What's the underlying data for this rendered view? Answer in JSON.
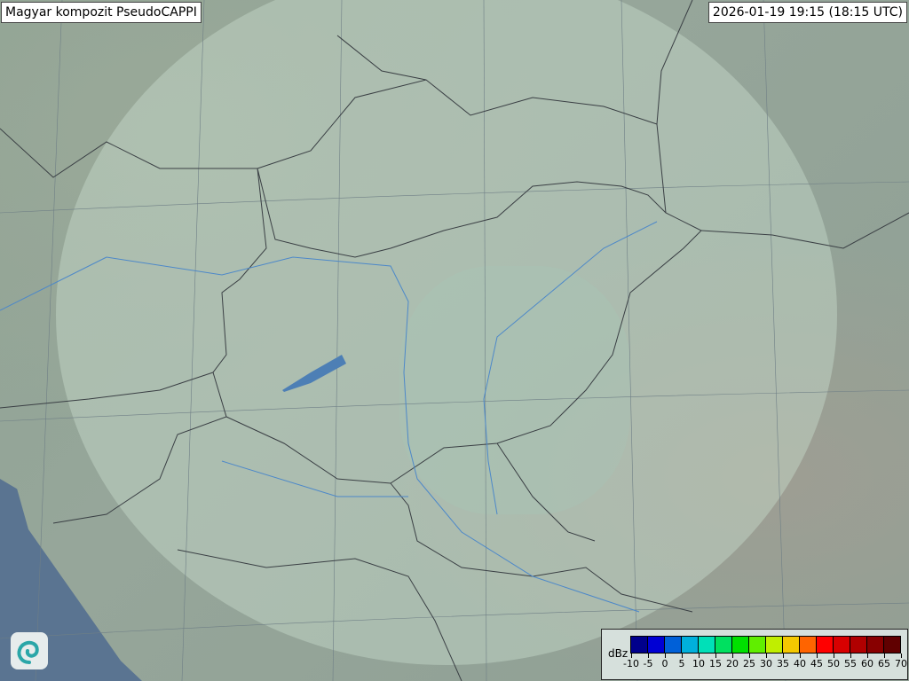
{
  "header": {
    "product": "Magyar kompozit  PseudoCAPPI",
    "timestamp": "2026-01-19 19:15 (18:15 UTC)"
  },
  "logo": {
    "icon": "swirl-logo-icon"
  },
  "legend": {
    "unit": "dBz",
    "ticks": [
      "-10",
      "-5",
      "0",
      "5",
      "10",
      "15",
      "20",
      "25",
      "30",
      "35",
      "40",
      "45",
      "50",
      "55",
      "60",
      "65",
      "70"
    ],
    "colors": [
      "#00008c",
      "#0000d4",
      "#0060d8",
      "#00b0dc",
      "#00e0b8",
      "#00e060",
      "#00e000",
      "#60ee00",
      "#c0ee00",
      "#f4c800",
      "#ff6400",
      "#ff0000",
      "#d80000",
      "#b00000",
      "#880000",
      "#600000"
    ]
  }
}
